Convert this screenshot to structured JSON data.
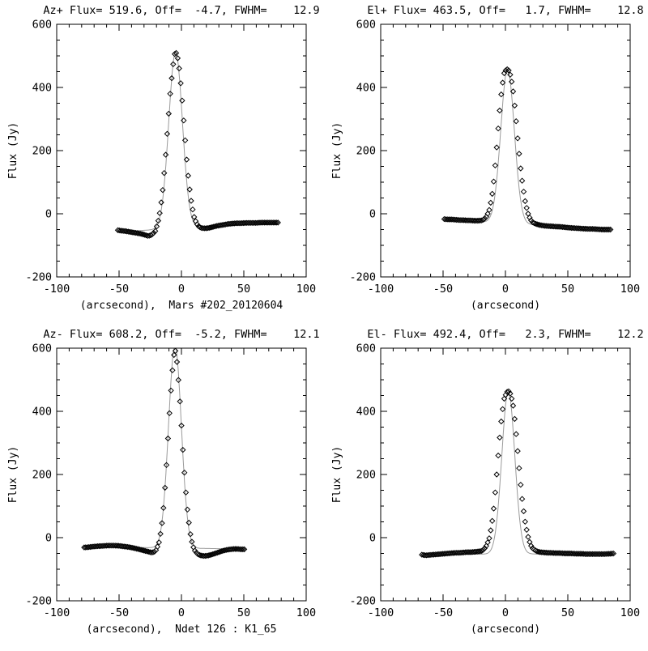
{
  "figure": {
    "name": "Beam scan fits, Mars pointing observation",
    "background": "#ffffff",
    "foreground": "#000000",
    "fit_line_color": "#9a9a9a",
    "marker_shape": "open-diamond"
  },
  "axes": {
    "ylabel": "Flux (Jy)",
    "xlim": [
      -100,
      100
    ],
    "ylim": [
      -200,
      600
    ],
    "xticks": {
      "values": [
        -100,
        -50,
        0,
        50,
        100
      ],
      "labels": [
        "-100",
        "-50",
        "0",
        "50",
        "100"
      ],
      "minor_step": 10
    },
    "yticks": {
      "values": [
        -200,
        0,
        200,
        400,
        600
      ],
      "labels": [
        "-200",
        "0",
        "200",
        "400",
        "600"
      ],
      "minor_step": 50
    },
    "grid": false
  },
  "chart_data": [
    {
      "id": "az-plus",
      "type": "scatter",
      "title": "Az+ Flux= 519.6, Off=  -4.7, FWHM=    12.9",
      "flux": 519.6,
      "offset": -4.7,
      "fwhm": 12.9,
      "xlabel": "(arcsecond),  Mars #202_20120604",
      "ylabel": "Flux (Jy)",
      "x_range": [
        -51,
        78
      ],
      "marker_step": 1.2,
      "fit": {
        "center": -4.7,
        "fwhm": 12.9,
        "peak": 512,
        "base_left": -57,
        "base_right": -29
      },
      "points": [
        [
          -51,
          -52
        ],
        [
          -48,
          -54
        ],
        [
          -45,
          -55
        ],
        [
          -42,
          -57
        ],
        [
          -39,
          -59
        ],
        [
          -36,
          -61
        ],
        [
          -33,
          -63
        ],
        [
          -30,
          -66
        ],
        [
          -27,
          -70
        ],
        [
          -25,
          -69
        ],
        [
          -23,
          -64
        ],
        [
          -21,
          -55
        ],
        [
          -19,
          -30
        ],
        [
          -17,
          10
        ],
        [
          -15,
          75
        ],
        [
          -13,
          165
        ],
        [
          -11,
          275
        ],
        [
          -9,
          380
        ],
        [
          -7,
          462
        ],
        [
          -5.5,
          505
        ],
        [
          -4.7,
          512
        ],
        [
          -3.5,
          505
        ],
        [
          -2,
          468
        ],
        [
          0,
          390
        ],
        [
          2,
          285
        ],
        [
          4,
          180
        ],
        [
          6,
          95
        ],
        [
          8,
          35
        ],
        [
          10,
          -8
        ],
        [
          12,
          -30
        ],
        [
          14,
          -41
        ],
        [
          16,
          -45
        ],
        [
          18,
          -46
        ],
        [
          20,
          -46
        ],
        [
          23,
          -44
        ],
        [
          26,
          -41
        ],
        [
          29,
          -38
        ],
        [
          32,
          -36
        ],
        [
          35,
          -34
        ],
        [
          38,
          -32
        ],
        [
          41,
          -31
        ],
        [
          44,
          -30
        ],
        [
          48,
          -30
        ],
        [
          52,
          -29
        ],
        [
          56,
          -29
        ],
        [
          60,
          -29
        ],
        [
          64,
          -28
        ],
        [
          68,
          -28
        ],
        [
          72,
          -28
        ],
        [
          75,
          -28
        ],
        [
          78,
          -28
        ]
      ]
    },
    {
      "id": "el-plus",
      "type": "scatter",
      "title": "El+ Flux= 463.5, Off=   1.7, FWHM=    12.8",
      "flux": 463.5,
      "offset": 1.7,
      "fwhm": 12.8,
      "xlabel": "(arcsecond)",
      "ylabel": "Flux (Jy)",
      "x_range": [
        -49,
        85
      ],
      "marker_step": 1.2,
      "fit": {
        "center": 1.7,
        "fwhm": 12.8,
        "peak": 458,
        "base_left": -19,
        "base_right": -49
      },
      "points": [
        [
          -49,
          -17
        ],
        [
          -46,
          -18
        ],
        [
          -43,
          -18
        ],
        [
          -40,
          -19
        ],
        [
          -37,
          -20
        ],
        [
          -34,
          -20
        ],
        [
          -31,
          -21
        ],
        [
          -28,
          -21
        ],
        [
          -25,
          -22
        ],
        [
          -22,
          -22
        ],
        [
          -19,
          -21
        ],
        [
          -17,
          -17
        ],
        [
          -15,
          -8
        ],
        [
          -13,
          12
        ],
        [
          -11,
          50
        ],
        [
          -9,
          115
        ],
        [
          -7,
          210
        ],
        [
          -5,
          310
        ],
        [
          -3,
          395
        ],
        [
          -1,
          445
        ],
        [
          0.5,
          456
        ],
        [
          1.7,
          458
        ],
        [
          3,
          452
        ],
        [
          4.5,
          430
        ],
        [
          6,
          395
        ],
        [
          8,
          320
        ],
        [
          10,
          230
        ],
        [
          12,
          150
        ],
        [
          14,
          85
        ],
        [
          16,
          35
        ],
        [
          18,
          2
        ],
        [
          20,
          -18
        ],
        [
          22,
          -28
        ],
        [
          25,
          -33
        ],
        [
          28,
          -36
        ],
        [
          31,
          -38
        ],
        [
          34,
          -39
        ],
        [
          38,
          -40
        ],
        [
          42,
          -41
        ],
        [
          46,
          -42
        ],
        [
          50,
          -44
        ],
        [
          54,
          -45
        ],
        [
          58,
          -46
        ],
        [
          62,
          -47
        ],
        [
          66,
          -48
        ],
        [
          70,
          -48
        ],
        [
          74,
          -49
        ],
        [
          78,
          -50
        ],
        [
          82,
          -50
        ],
        [
          85,
          -50
        ]
      ]
    },
    {
      "id": "az-minus",
      "type": "scatter",
      "title": "Az- Flux= 608.2, Off=  -5.2, FWHM=    12.1",
      "flux": 608.2,
      "offset": -5.2,
      "fwhm": 12.1,
      "xlabel": "(arcsecond),  Ndet 126 : K1_65",
      "ylabel": "Flux (Jy)",
      "x_range": [
        -78,
        51
      ],
      "marker_step": 1.2,
      "fit": {
        "center": -5.2,
        "fwhm": 12.1,
        "peak": 608,
        "base_left": -29,
        "base_right": -36
      },
      "points": [
        [
          -78,
          -31
        ],
        [
          -74,
          -30
        ],
        [
          -70,
          -28
        ],
        [
          -66,
          -27
        ],
        [
          -62,
          -26
        ],
        [
          -58,
          -25
        ],
        [
          -54,
          -25
        ],
        [
          -50,
          -26
        ],
        [
          -46,
          -28
        ],
        [
          -42,
          -30
        ],
        [
          -38,
          -33
        ],
        [
          -34,
          -37
        ],
        [
          -30,
          -41
        ],
        [
          -27,
          -44
        ],
        [
          -24,
          -47
        ],
        [
          -22,
          -46
        ],
        [
          -20,
          -38
        ],
        [
          -18,
          -15
        ],
        [
          -16,
          30
        ],
        [
          -14,
          110
        ],
        [
          -12,
          230
        ],
        [
          -10,
          370
        ],
        [
          -8,
          490
        ],
        [
          -6.5,
          565
        ],
        [
          -5.2,
          600
        ],
        [
          -4,
          575
        ],
        [
          -2.5,
          505
        ],
        [
          -1,
          420
        ],
        [
          1,
          290
        ],
        [
          3,
          170
        ],
        [
          5,
          80
        ],
        [
          7,
          15
        ],
        [
          9,
          -25
        ],
        [
          11,
          -43
        ],
        [
          13,
          -52
        ],
        [
          15,
          -56
        ],
        [
          18,
          -58
        ],
        [
          21,
          -57
        ],
        [
          24,
          -54
        ],
        [
          27,
          -50
        ],
        [
          30,
          -46
        ],
        [
          33,
          -42
        ],
        [
          36,
          -39
        ],
        [
          39,
          -37
        ],
        [
          42,
          -36
        ],
        [
          45,
          -36
        ],
        [
          48,
          -37
        ],
        [
          51,
          -37
        ]
      ]
    },
    {
      "id": "el-minus",
      "type": "scatter",
      "title": "El- Flux= 492.4, Off=   2.3, FWHM=    12.2",
      "flux": 492.4,
      "offset": 2.3,
      "fwhm": 12.2,
      "xlabel": "(arcsecond)",
      "ylabel": "Flux (Jy)",
      "x_range": [
        -67,
        87
      ],
      "marker_step": 1.2,
      "fit": {
        "center": 2.3,
        "fwhm": 12.2,
        "peak": 465,
        "base_left": -53,
        "base_right": -51
      },
      "points": [
        [
          -67,
          -54
        ],
        [
          -64,
          -56
        ],
        [
          -61,
          -55
        ],
        [
          -58,
          -54
        ],
        [
          -55,
          -53
        ],
        [
          -52,
          -52
        ],
        [
          -49,
          -51
        ],
        [
          -46,
          -50
        ],
        [
          -43,
          -49
        ],
        [
          -40,
          -48
        ],
        [
          -37,
          -48
        ],
        [
          -34,
          -47
        ],
        [
          -31,
          -46
        ],
        [
          -28,
          -46
        ],
        [
          -25,
          -45
        ],
        [
          -22,
          -44
        ],
        [
          -19,
          -42
        ],
        [
          -17,
          -36
        ],
        [
          -15,
          -24
        ],
        [
          -13,
          -2
        ],
        [
          -11,
          40
        ],
        [
          -9,
          105
        ],
        [
          -7,
          200
        ],
        [
          -5,
          300
        ],
        [
          -3,
          385
        ],
        [
          -1,
          440
        ],
        [
          1,
          460
        ],
        [
          2.3,
          465
        ],
        [
          4,
          455
        ],
        [
          6,
          425
        ],
        [
          8,
          355
        ],
        [
          10,
          265
        ],
        [
          12,
          175
        ],
        [
          14,
          100
        ],
        [
          16,
          45
        ],
        [
          18,
          5
        ],
        [
          20,
          -22
        ],
        [
          22,
          -35
        ],
        [
          25,
          -43
        ],
        [
          28,
          -46
        ],
        [
          31,
          -47
        ],
        [
          34,
          -48
        ],
        [
          37,
          -48
        ],
        [
          40,
          -49
        ],
        [
          44,
          -49
        ],
        [
          48,
          -50
        ],
        [
          52,
          -50
        ],
        [
          56,
          -51
        ],
        [
          60,
          -51
        ],
        [
          64,
          -52
        ],
        [
          68,
          -52
        ],
        [
          72,
          -52
        ],
        [
          76,
          -52
        ],
        [
          80,
          -52
        ],
        [
          84,
          -51
        ],
        [
          87,
          -50
        ]
      ]
    }
  ]
}
